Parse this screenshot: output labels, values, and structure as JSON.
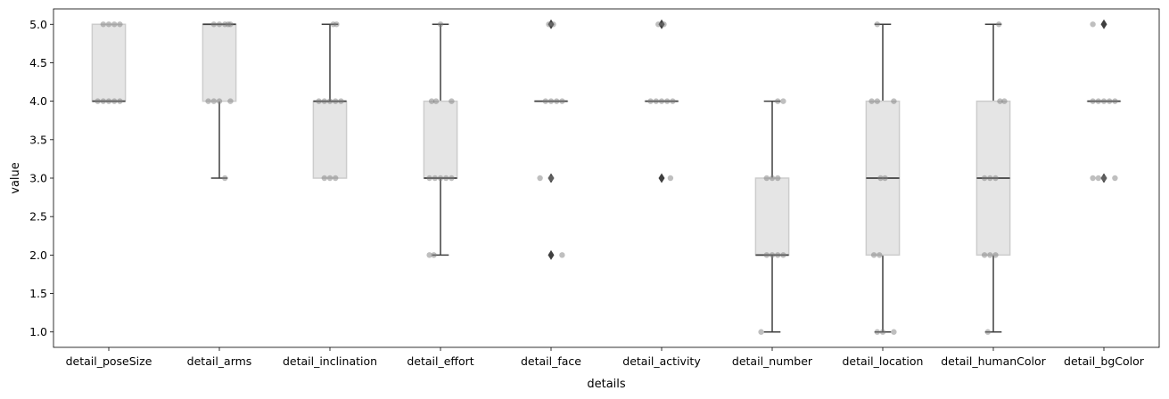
{
  "chart_data": {
    "type": "boxplot",
    "xlabel": "details",
    "ylabel": "value",
    "ylim": [
      0.8,
      5.2
    ],
    "yticks": [
      1.0,
      1.5,
      2.0,
      2.5,
      3.0,
      3.5,
      4.0,
      4.5,
      5.0
    ],
    "ytick_labels": [
      "1.0",
      "1.5",
      "2.0",
      "2.5",
      "3.0",
      "3.5",
      "4.0",
      "4.5",
      "5.0"
    ],
    "categories": [
      "detail_poseSize",
      "detail_arms",
      "detail_inclination",
      "detail_effort",
      "detail_face",
      "detail_activity",
      "detail_number",
      "detail_location",
      "detail_humanColor",
      "detail_bgColor"
    ],
    "boxes": [
      {
        "q1": 4,
        "median": 4,
        "q3": 5,
        "whisker_low": 4,
        "whisker_high": 5,
        "outliers": [],
        "points": [
          [
            4,
            -0.1
          ],
          [
            4,
            -0.05
          ],
          [
            4,
            0
          ],
          [
            4,
            0.05
          ],
          [
            4,
            0.1
          ],
          [
            5,
            -0.05
          ],
          [
            5,
            0
          ],
          [
            5,
            0.05
          ],
          [
            5,
            0.1
          ]
        ]
      },
      {
        "q1": 4,
        "median": 5,
        "q3": 5,
        "whisker_low": 3,
        "whisker_high": 5,
        "outliers": [],
        "points": [
          [
            3,
            0.05
          ],
          [
            4,
            -0.1
          ],
          [
            4,
            -0.05
          ],
          [
            4,
            0
          ],
          [
            4,
            0.1
          ],
          [
            5,
            -0.05
          ],
          [
            5,
            0
          ],
          [
            5,
            0.05
          ],
          [
            5,
            0.08
          ],
          [
            5,
            0.1
          ]
        ]
      },
      {
        "q1": 3,
        "median": 4,
        "q3": 4,
        "whisker_low": 3,
        "whisker_high": 5,
        "outliers": [],
        "points": [
          [
            3,
            -0.05
          ],
          [
            3,
            0
          ],
          [
            3,
            0.05
          ],
          [
            4,
            -0.1
          ],
          [
            4,
            -0.05
          ],
          [
            4,
            0
          ],
          [
            4,
            0.05
          ],
          [
            4,
            0.1
          ],
          [
            5,
            0.03
          ],
          [
            5,
            0.06
          ]
        ]
      },
      {
        "q1": 3,
        "median": 3,
        "q3": 4,
        "whisker_low": 2,
        "whisker_high": 5,
        "outliers": [],
        "points": [
          [
            2,
            -0.1
          ],
          [
            2,
            -0.06
          ],
          [
            3,
            -0.1
          ],
          [
            3,
            -0.05
          ],
          [
            3,
            0
          ],
          [
            3,
            0.05
          ],
          [
            3,
            0.1
          ],
          [
            4,
            -0.08
          ],
          [
            4,
            -0.04
          ],
          [
            4,
            0.1
          ],
          [
            5,
            0
          ]
        ]
      },
      {
        "q1": 4,
        "median": 4,
        "q3": 4,
        "whisker_low": 4,
        "whisker_high": 4,
        "outliers": [
          5,
          3,
          2
        ],
        "points": [
          [
            2,
            0.1
          ],
          [
            3,
            -0.1
          ],
          [
            3,
            0
          ],
          [
            4,
            -0.05
          ],
          [
            4,
            0
          ],
          [
            4,
            0.05
          ],
          [
            4,
            0.1
          ],
          [
            5,
            -0.02
          ],
          [
            5,
            0.02
          ]
        ]
      },
      {
        "q1": 4,
        "median": 4,
        "q3": 4,
        "whisker_low": 4,
        "whisker_high": 4,
        "outliers": [
          5,
          3
        ],
        "points": [
          [
            3,
            0.08
          ],
          [
            4,
            -0.1
          ],
          [
            4,
            -0.05
          ],
          [
            4,
            0
          ],
          [
            4,
            0.05
          ],
          [
            4,
            0.1
          ],
          [
            5,
            -0.03
          ],
          [
            5,
            0.02
          ]
        ]
      },
      {
        "q1": 2,
        "median": 2,
        "q3": 3,
        "whisker_low": 1,
        "whisker_high": 4,
        "outliers": [],
        "points": [
          [
            1,
            -0.1
          ],
          [
            2,
            -0.05
          ],
          [
            2,
            0
          ],
          [
            2,
            0.05
          ],
          [
            2,
            0.1
          ],
          [
            3,
            -0.05
          ],
          [
            3,
            0
          ],
          [
            3,
            0.05
          ],
          [
            4,
            0.05
          ],
          [
            4,
            0.1
          ]
        ]
      },
      {
        "q1": 2,
        "median": 3,
        "q3": 4,
        "whisker_low": 1,
        "whisker_high": 5,
        "outliers": [],
        "points": [
          [
            1,
            -0.05
          ],
          [
            1,
            0
          ],
          [
            1,
            0.1
          ],
          [
            2,
            -0.08
          ],
          [
            2,
            -0.03
          ],
          [
            3,
            -0.02
          ],
          [
            3,
            0.02
          ],
          [
            4,
            -0.1
          ],
          [
            4,
            -0.05
          ],
          [
            4,
            0.1
          ],
          [
            5,
            -0.05
          ]
        ]
      },
      {
        "q1": 2,
        "median": 3,
        "q3": 4,
        "whisker_low": 1,
        "whisker_high": 5,
        "outliers": [],
        "points": [
          [
            1,
            -0.05
          ],
          [
            2,
            -0.08
          ],
          [
            2,
            -0.03
          ],
          [
            2,
            0.02
          ],
          [
            3,
            -0.08
          ],
          [
            3,
            -0.03
          ],
          [
            3,
            0.02
          ],
          [
            4,
            0.06
          ],
          [
            4,
            0.1
          ],
          [
            5,
            0.05
          ]
        ]
      },
      {
        "q1": 4,
        "median": 4,
        "q3": 4,
        "whisker_low": 4,
        "whisker_high": 4,
        "outliers": [
          5,
          3
        ],
        "points": [
          [
            3,
            -0.1
          ],
          [
            3,
            -0.05
          ],
          [
            3,
            0
          ],
          [
            3,
            0.1
          ],
          [
            4,
            -0.1
          ],
          [
            4,
            -0.05
          ],
          [
            4,
            0
          ],
          [
            4,
            0.05
          ],
          [
            4,
            0.1
          ],
          [
            5,
            -0.1
          ]
        ]
      }
    ],
    "colors": {
      "box_fill": "#e5e5e5",
      "box_edge": "#cccccc",
      "line": "#3f3f3f",
      "point": "#808080",
      "outlier": "#3f3f3f"
    },
    "grid": false,
    "legend": "none"
  }
}
